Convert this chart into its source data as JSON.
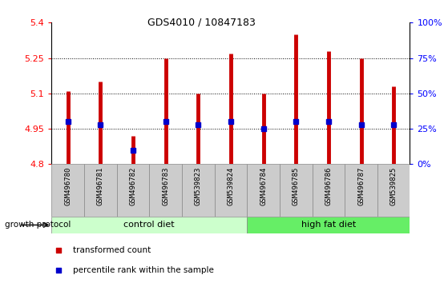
{
  "title": "GDS4010 / 10847183",
  "samples": [
    "GSM496780",
    "GSM496781",
    "GSM496782",
    "GSM496783",
    "GSM539823",
    "GSM539824",
    "GSM496784",
    "GSM496785",
    "GSM496786",
    "GSM496787",
    "GSM539825"
  ],
  "bar_values": [
    5.11,
    5.15,
    4.92,
    5.25,
    5.1,
    5.27,
    5.1,
    5.35,
    5.28,
    5.25,
    5.13
  ],
  "percentile_values": [
    0.3,
    0.28,
    0.1,
    0.3,
    0.28,
    0.3,
    0.25,
    0.3,
    0.3,
    0.28,
    0.28
  ],
  "bar_color": "#cc0000",
  "dot_color": "#0000cc",
  "ylim_left": [
    4.8,
    5.4
  ],
  "ylim_right": [
    0.0,
    1.0
  ],
  "yticks_left": [
    4.8,
    4.95,
    5.1,
    5.25,
    5.4
  ],
  "ytick_labels_left": [
    "4.8",
    "4.95",
    "5.1",
    "5.25",
    "5.4"
  ],
  "yticks_right": [
    0.0,
    0.25,
    0.5,
    0.75,
    1.0
  ],
  "ytick_labels_right": [
    "0%",
    "25%",
    "50%",
    "75%",
    "100%"
  ],
  "hlines": [
    4.95,
    5.1,
    5.25
  ],
  "n_control": 6,
  "n_high_fat": 5,
  "control_label": "control diet",
  "high_fat_label": "high fat diet",
  "group_label": "growth protocol",
  "bar_linewidth": 3.5,
  "control_bg": "#ccffcc",
  "high_fat_bg": "#66ee66",
  "tick_bg": "#cccccc",
  "legend_bar_label": "transformed count",
  "legend_dot_label": "percentile rank within the sample"
}
